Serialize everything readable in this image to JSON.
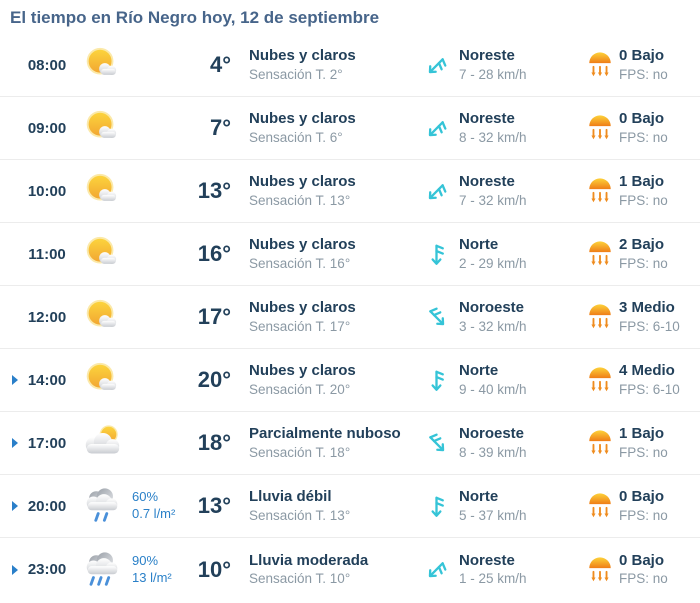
{
  "title": "El tiempo en Río Negro hoy, 12 de septiembre",
  "colors": {
    "title": "#47658a",
    "primary_text": "#22405a",
    "secondary_text": "#8b99a4",
    "precipitation_blue": "#2a80c8",
    "wind_cyan": "#35c4d7",
    "uv_orange": "#ef8c1f",
    "marker_blue": "#2a7fc9",
    "divider": "#ececec"
  },
  "rows": [
    {
      "time": "08:00",
      "marker": false,
      "icon": "sun-cloud-icon",
      "precip_pct": "",
      "precip_amount": "",
      "temp": "4°",
      "condition": "Nubes y claros",
      "feels_like": "Sensación T. 2°",
      "wind_direction": "Noreste",
      "wind_speed": "7 - 28 km/h",
      "wind_deg": 45,
      "uv_index": "0 Bajo",
      "uv_fps": "FPS: no"
    },
    {
      "time": "09:00",
      "marker": false,
      "icon": "sun-cloud-icon",
      "precip_pct": "",
      "precip_amount": "",
      "temp": "7°",
      "condition": "Nubes y claros",
      "feels_like": "Sensación T. 6°",
      "wind_direction": "Noreste",
      "wind_speed": "8 - 32 km/h",
      "wind_deg": 45,
      "uv_index": "0 Bajo",
      "uv_fps": "FPS: no"
    },
    {
      "time": "10:00",
      "marker": false,
      "icon": "sun-cloud-icon",
      "precip_pct": "",
      "precip_amount": "",
      "temp": "13°",
      "condition": "Nubes y claros",
      "feels_like": "Sensación T. 13°",
      "wind_direction": "Noreste",
      "wind_speed": "7 - 32 km/h",
      "wind_deg": 45,
      "uv_index": "1 Bajo",
      "uv_fps": "FPS: no"
    },
    {
      "time": "11:00",
      "marker": false,
      "icon": "sun-cloud-icon",
      "precip_pct": "",
      "precip_amount": "",
      "temp": "16°",
      "condition": "Nubes y claros",
      "feels_like": "Sensación T. 16°",
      "wind_direction": "Norte",
      "wind_speed": "2 - 29 km/h",
      "wind_deg": 0,
      "uv_index": "2 Bajo",
      "uv_fps": "FPS: no"
    },
    {
      "time": "12:00",
      "marker": false,
      "icon": "sun-cloud-icon",
      "precip_pct": "",
      "precip_amount": "",
      "temp": "17°",
      "condition": "Nubes y claros",
      "feels_like": "Sensación T. 17°",
      "wind_direction": "Noroeste",
      "wind_speed": "3 - 32 km/h",
      "wind_deg": -45,
      "uv_index": "3 Medio",
      "uv_fps": "FPS: 6-10"
    },
    {
      "time": "14:00",
      "marker": true,
      "icon": "sun-cloud-icon",
      "precip_pct": "",
      "precip_amount": "",
      "temp": "20°",
      "condition": "Nubes y claros",
      "feels_like": "Sensación T. 20°",
      "wind_direction": "Norte",
      "wind_speed": "9 - 40 km/h",
      "wind_deg": 0,
      "uv_index": "4 Medio",
      "uv_fps": "FPS: 6-10"
    },
    {
      "time": "17:00",
      "marker": true,
      "icon": "cloud-sun-icon",
      "precip_pct": "",
      "precip_amount": "",
      "temp": "18°",
      "condition": "Parcialmente nuboso",
      "feels_like": "Sensación T. 18°",
      "wind_direction": "Noroeste",
      "wind_speed": "8 - 39 km/h",
      "wind_deg": -45,
      "uv_index": "1 Bajo",
      "uv_fps": "FPS: no"
    },
    {
      "time": "20:00",
      "marker": true,
      "icon": "rain-light-icon",
      "precip_pct": "60%",
      "precip_amount": "0.7 l/m²",
      "temp": "13°",
      "condition": "Lluvia débil",
      "feels_like": "Sensación T. 13°",
      "wind_direction": "Norte",
      "wind_speed": "5 - 37 km/h",
      "wind_deg": 0,
      "uv_index": "0 Bajo",
      "uv_fps": "FPS: no"
    },
    {
      "time": "23:00",
      "marker": true,
      "icon": "rain-moderate-icon",
      "precip_pct": "90%",
      "precip_amount": "13 l/m²",
      "temp": "10°",
      "condition": "Lluvia moderada",
      "feels_like": "Sensación T. 10°",
      "wind_direction": "Noreste",
      "wind_speed": "1 - 25 km/h",
      "wind_deg": 45,
      "uv_index": "0 Bajo",
      "uv_fps": "FPS: no"
    }
  ]
}
